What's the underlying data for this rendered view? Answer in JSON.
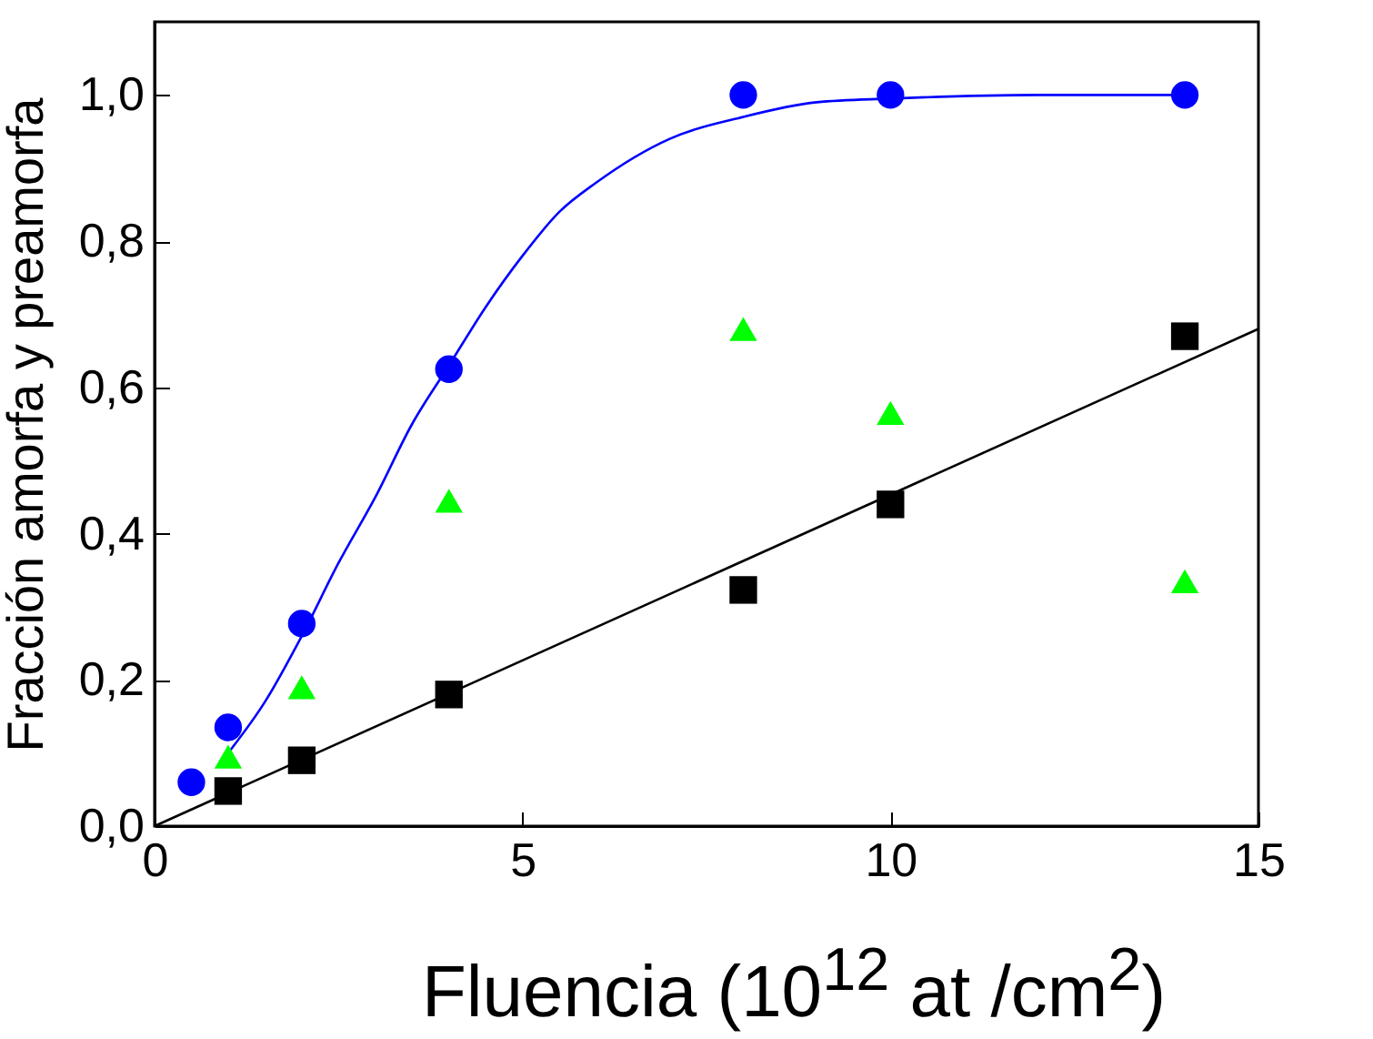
{
  "chart_data": {
    "type": "scatter",
    "xlabel": "Fluencia (10$^{12}$ at /cm$^{2}$)",
    "ylabel": "Fracción amorfa y preamorfa",
    "xlim": [
      0,
      15
    ],
    "ylim": [
      0,
      1.1
    ],
    "xticks": [
      0,
      5,
      10,
      15
    ],
    "yticks": [
      {
        "value": 0,
        "label": "0,0"
      },
      {
        "value": 0.2,
        "label": "0,2"
      },
      {
        "value": 0.4,
        "label": "0,4"
      },
      {
        "value": 0.6,
        "label": "0,6"
      },
      {
        "value": 0.8,
        "label": "0,8"
      },
      {
        "value": 1,
        "label": "1,0"
      }
    ],
    "grid": false,
    "series": [
      {
        "type": "line",
        "marker": "none",
        "color": "#0000ff",
        "x": [
          1,
          1.5,
          2,
          2.5,
          3,
          3.5,
          4,
          4.5,
          5,
          5.5,
          6,
          7,
          8,
          9,
          10,
          12,
          14
        ],
        "values": [
          0.1,
          0.17,
          0.26,
          0.36,
          0.45,
          0.55,
          0.63,
          0.71,
          0.78,
          0.84,
          0.88,
          0.94,
          0.97,
          0.99,
          0.995,
          1.0,
          1.0
        ]
      },
      {
        "type": "line",
        "marker": "none",
        "color": "#000000",
        "x": [
          0,
          15
        ],
        "values": [
          0,
          0.68
        ]
      },
      {
        "marker": "circle",
        "color": "#0000ff",
        "x": [
          0.5,
          1,
          2,
          4,
          8,
          10,
          14
        ],
        "values": [
          0.06,
          0.135,
          0.277,
          0.625,
          1.0,
          1.0,
          1.0
        ]
      },
      {
        "marker": "triangle",
        "color": "#00ff00",
        "x": [
          1,
          2,
          4,
          8,
          10,
          14
        ],
        "values": [
          0.095,
          0.19,
          0.445,
          0.68,
          0.565,
          0.335
        ]
      },
      {
        "marker": "square",
        "color": "#000000",
        "x": [
          1,
          2,
          4,
          8,
          10,
          14
        ],
        "values": [
          0.048,
          0.09,
          0.18,
          0.323,
          0.44,
          0.67
        ]
      }
    ]
  }
}
